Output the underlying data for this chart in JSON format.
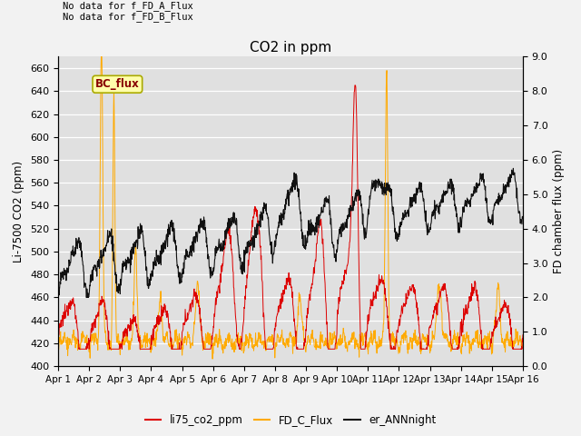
{
  "title": "CO2 in ppm",
  "ylabel_left": "Li-7500 CO2 (ppm)",
  "ylabel_right": "FD chamber flux (ppm)",
  "ylim_left": [
    400,
    670
  ],
  "ylim_right": [
    0.0,
    9.0
  ],
  "yticks_left": [
    400,
    420,
    440,
    460,
    480,
    500,
    520,
    540,
    560,
    580,
    600,
    620,
    640,
    660
  ],
  "yticks_right": [
    0.0,
    1.0,
    2.0,
    3.0,
    4.0,
    5.0,
    6.0,
    7.0,
    8.0,
    9.0
  ],
  "xtick_labels": [
    "Apr 1",
    "Apr 2",
    "Apr 3",
    "Apr 4",
    "Apr 5",
    "Apr 6",
    "Apr 7",
    "Apr 8",
    "Apr 9",
    "Apr 10",
    "Apr 11",
    "Apr 12",
    "Apr 13",
    "Apr 14",
    "Apr 15",
    "Apr 16"
  ],
  "annotation_text": "No data for f_FD_A_Flux\nNo data for f_FD_B_Flux",
  "legend_label_bc": "BC_flux",
  "legend_entries": [
    "li75_co2_ppm",
    "FD_C_Flux",
    "er_ANNnight"
  ],
  "line_colors": [
    "#dd0000",
    "#ffaa00",
    "#111111"
  ],
  "bc_box_facecolor": "#ffffaa",
  "bc_box_edgecolor": "#aaaa00",
  "bc_text_color": "#880000",
  "plot_bg": "#e0e0e0",
  "fig_bg": "#f2f2f2",
  "grid_color": "#ffffff",
  "n_days": 15,
  "n_pts": 1500
}
